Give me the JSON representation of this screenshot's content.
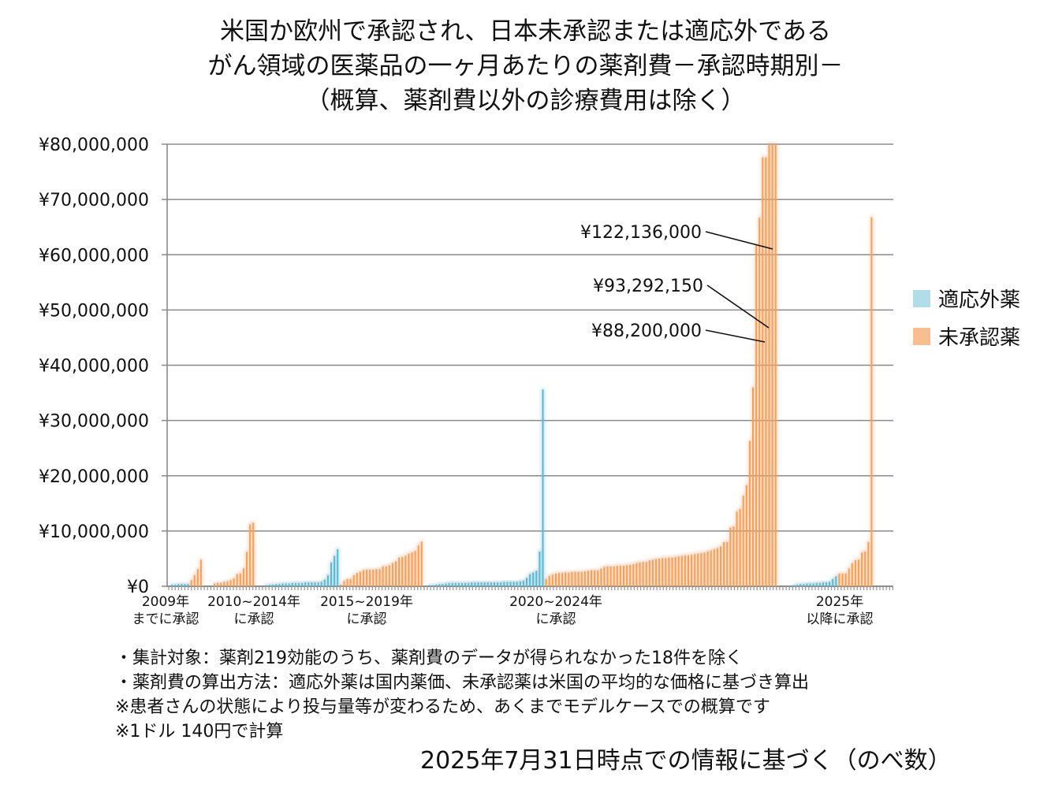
{
  "chart_data": {
    "type": "bar",
    "title_lines": [
      "米国か欧州で承認され、日本未承認または適応外である",
      "がん領域の医薬品の一ヶ月あたりの薬剤費－承認時期別－",
      "（概算、薬剤費以外の診療費用は除く）"
    ],
    "ylim": [
      0,
      80000000
    ],
    "grid": true,
    "legend_position": "right",
    "y_ticks": [
      "¥0",
      "¥10,000,000",
      "¥20,000,000",
      "¥30,000,000",
      "¥40,000,000",
      "¥50,000,000",
      "¥60,000,000",
      "¥70,000,000",
      "¥80,000,000"
    ],
    "series": [
      {
        "name": "適応外薬",
        "color": "#5bb8d4",
        "legend_color": "#b0dde8"
      },
      {
        "name": "未承認薬",
        "color": "#f5a05a",
        "legend_color": "#f8be90"
      }
    ],
    "unit": "million yen",
    "groups": [
      {
        "label": [
          "2009年",
          "までに承認"
        ],
        "適応外薬": [
          0.3,
          0.3,
          0.4,
          0.4,
          0.4,
          0.4
        ],
        "未承認薬": [
          1.1,
          2.0,
          3.1,
          4.8
        ]
      },
      {
        "label": [
          "2010~2014年",
          "に承認"
        ],
        "適応外薬": [],
        "未承認薬": [
          0.5,
          0.6,
          0.6,
          0.8,
          0.9,
          1.1,
          1.4,
          2.2,
          2.3,
          3.2,
          6.2,
          11.2,
          11.5
        ]
      },
      {
        "label": [
          "2015~2019年",
          "に承認"
        ],
        "適応外薬": [
          0.2,
          0.3,
          0.3,
          0.4,
          0.4,
          0.5,
          0.5,
          0.5,
          0.6,
          0.6,
          0.6,
          0.6,
          0.7,
          0.7,
          0.7,
          0.7,
          0.7,
          0.8,
          1.2,
          2.0,
          4.3,
          5.5,
          6.7
        ],
        "未承認薬": [
          0.3,
          0.95,
          1.3,
          1.3,
          2.0,
          2.4,
          2.6,
          2.9,
          3.0,
          3.0,
          3.0,
          3.1,
          3.1,
          3.6,
          3.6,
          3.8,
          4.2,
          4.5,
          5.2,
          5.3,
          5.5,
          5.9,
          6.1,
          6.4,
          7.4,
          8.1
        ]
      },
      {
        "label": [
          "2020~2024年",
          "に承認"
        ],
        "適応外薬": [
          0.2,
          0.2,
          0.3,
          0.4,
          0.4,
          0.5,
          0.6,
          0.6,
          0.6,
          0.6,
          0.6,
          0.6,
          0.6,
          0.7,
          0.7,
          0.7,
          0.7,
          0.7,
          0.7,
          0.7,
          0.7,
          0.7,
          0.7,
          0.8,
          0.8,
          0.8,
          0.8,
          0.8,
          0.9,
          1.0,
          1.5,
          2.2,
          2.5,
          2.8,
          6.3,
          35.6
        ],
        "未承認薬": [
          1.3,
          1.9,
          2.1,
          2.3,
          2.4,
          2.4,
          2.5,
          2.5,
          2.6,
          2.6,
          2.6,
          2.6,
          2.7,
          2.8,
          2.9,
          2.9,
          2.9,
          3.2,
          3.5,
          3.6,
          3.6,
          3.6,
          3.7,
          3.7,
          3.7,
          3.8,
          3.9,
          4.0,
          4.2,
          4.3,
          4.4,
          4.4,
          4.7,
          4.8,
          4.9,
          5.0,
          5.1,
          5.1,
          5.2,
          5.2,
          5.3,
          5.4,
          5.5,
          5.6,
          5.6,
          5.7,
          5.8,
          5.9,
          6.0,
          6.1,
          6.3,
          6.5,
          6.7,
          6.9,
          7.2,
          8.0,
          8.0,
          10.6,
          10.8,
          13.5,
          14.0,
          16.4,
          18.3,
          26.3,
          36.0,
          61.7,
          66.7,
          77.6,
          77.6,
          88.2,
          93.29215,
          122.136
        ]
      },
      {
        "label": [
          "2025年",
          "以降に承認"
        ],
        "適応外薬": [
          0.2,
          0.3,
          0.4,
          0.4,
          0.5,
          0.5,
          0.5,
          0.6,
          0.6,
          0.7,
          0.7,
          0.8,
          1.3,
          1.8
        ],
        "未承認薬": [
          2.3,
          2.3,
          2.3,
          3.2,
          4.2,
          4.7,
          4.8,
          6.1,
          6.3,
          8.0,
          66.8
        ]
      }
    ],
    "annotations": [
      "¥122,136,000",
      "¥93,292,150",
      "¥88,200,000"
    ]
  },
  "notes": [
    "・集計対象：薬剤219効能のうち、薬剤費のデータが得られなかった18件を除く",
    "・薬剤費の算出方法：適応外薬は国内薬価、未承認薬は米国の平均的な価格に基づき算出",
    "※患者さんの状態により投与量等が変わるため、あくまでモデルケースでの概算です",
    "※1ドル 140円で計算"
  ],
  "footer": "2025年7月31日時点での情報に基づく（のべ数）"
}
